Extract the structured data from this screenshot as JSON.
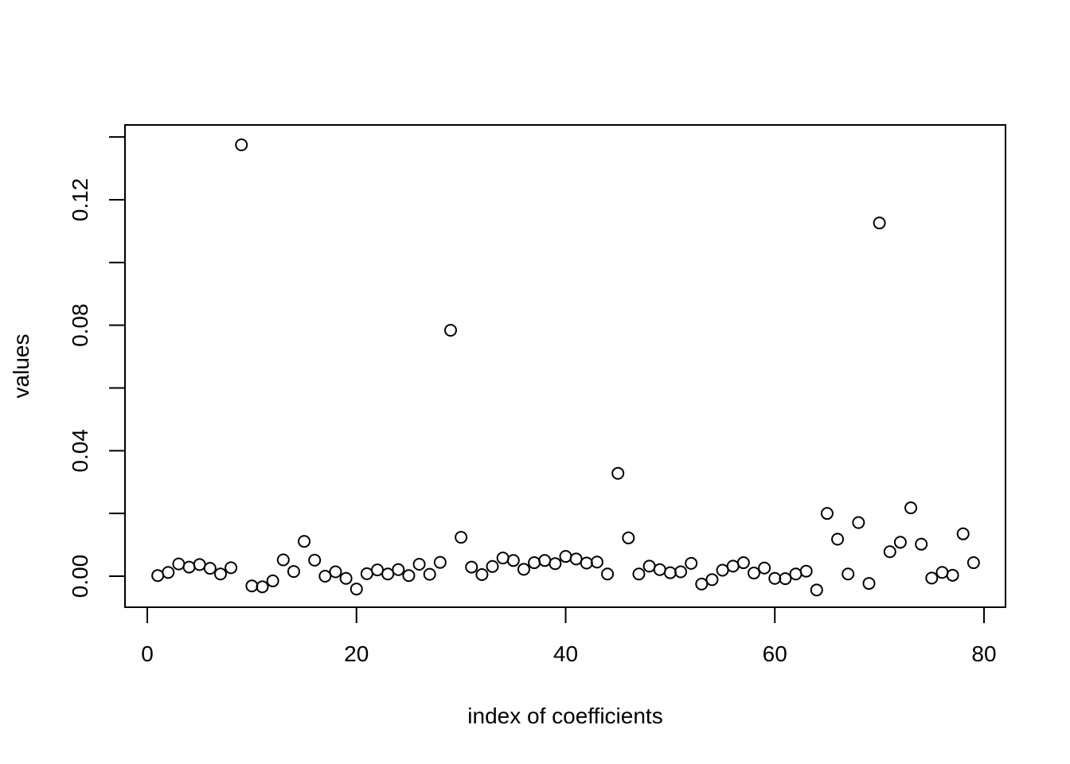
{
  "chart_data": {
    "type": "scatter",
    "xlabel": "index of coefficients",
    "ylabel": "values",
    "xlim": [
      0,
      80
    ],
    "ylim": [
      -0.005,
      0.14
    ],
    "x_ticks": [
      0,
      20,
      40,
      60,
      80
    ],
    "x_tick_labels": [
      "0",
      "20",
      "40",
      "60",
      "80"
    ],
    "y_ticks": [
      0.0,
      0.04,
      0.08,
      0.12
    ],
    "y_tick_labels": [
      "0.00",
      "0.04",
      "0.08",
      "0.12"
    ],
    "y_minor_ticks": [
      0.02,
      0.06,
      0.1,
      0.14
    ],
    "grid": false,
    "marker": "open-circle",
    "color": "#000000",
    "series": [
      {
        "x": [
          1,
          2,
          3,
          4,
          5,
          6,
          7,
          8,
          9,
          10,
          11,
          12,
          13,
          14,
          15,
          16,
          17,
          18,
          19,
          20,
          21,
          22,
          23,
          24,
          25,
          26,
          27,
          28,
          29,
          30,
          31,
          32,
          33,
          34,
          35,
          36,
          37,
          38,
          39,
          40,
          41,
          42,
          43,
          44,
          45,
          46,
          47,
          48,
          49,
          50,
          51,
          52,
          53,
          54,
          55,
          56,
          57,
          58,
          59,
          60,
          61,
          62,
          63,
          64,
          65,
          66,
          67,
          68,
          69,
          70,
          71,
          72,
          73,
          74,
          75,
          76,
          77,
          78,
          79
        ],
        "y": [
          0.0002,
          0.0012,
          0.0039,
          0.0029,
          0.0037,
          0.0025,
          0.0007,
          0.0027,
          0.1375,
          -0.0031,
          -0.0034,
          -0.0015,
          0.0052,
          0.0015,
          0.0111,
          0.0051,
          0.0,
          0.0014,
          -0.0007,
          -0.0041,
          0.0008,
          0.002,
          0.0007,
          0.0021,
          0.0002,
          0.0038,
          0.0006,
          0.0044,
          0.0784,
          0.0124,
          0.0029,
          0.0005,
          0.0031,
          0.0058,
          0.005,
          0.0022,
          0.0043,
          0.005,
          0.004,
          0.0063,
          0.0055,
          0.0042,
          0.0045,
          0.0007,
          0.0328,
          0.0122,
          0.0007,
          0.0032,
          0.0021,
          0.0011,
          0.0014,
          0.0041,
          -0.0025,
          -0.0011,
          0.0019,
          0.0032,
          0.0043,
          0.001,
          0.0026,
          -0.0007,
          -0.0008,
          0.0007,
          0.0016,
          -0.0044,
          0.02,
          0.0118,
          0.0007,
          0.0171,
          -0.0023,
          0.1126,
          0.0078,
          0.0108,
          0.0218,
          0.0102,
          -0.0006,
          0.0012,
          0.0003,
          0.0135,
          0.0043
        ]
      }
    ]
  }
}
